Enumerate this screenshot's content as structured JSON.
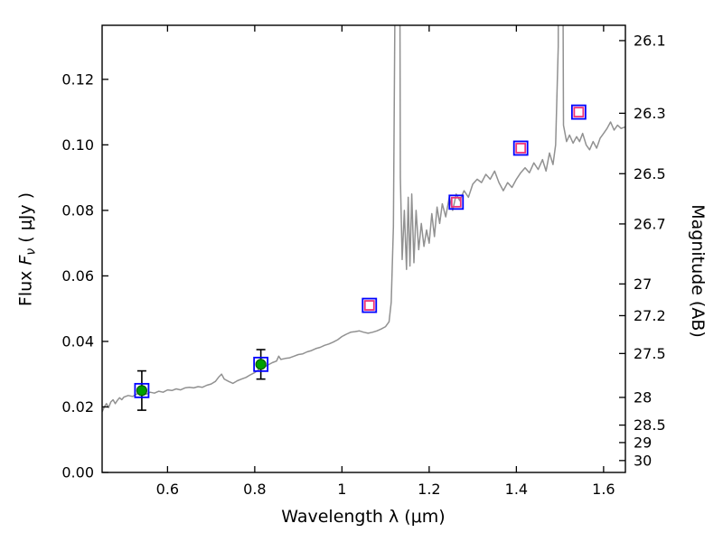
{
  "chart_data": {
    "type": "line+scatter",
    "title": "",
    "xlabel": "Wavelength  λ (μm)",
    "ylabel_left": {
      "text_before": "Flux  ",
      "symbol": "F",
      "subscript": "ν",
      "text_after": "  ( μJy )"
    },
    "ylabel_right": "Magnitude (AB)",
    "axes": {
      "xlim": [
        0.45,
        1.65
      ],
      "ylim": [
        0,
        0.1365
      ],
      "x_tick_values": [
        0.6,
        0.8,
        1.0,
        1.2,
        1.4,
        1.6
      ],
      "x_tick_labels": [
        "0.6",
        "0.8",
        "1",
        "1.2",
        "1.4",
        "1.6"
      ],
      "y_left_tick_values": [
        0,
        0.02,
        0.04,
        0.06,
        0.08,
        0.1,
        0.12
      ],
      "y_left_tick_labels": [
        "0.00",
        "0.02",
        "0.04",
        "0.06",
        "0.08",
        "0.10",
        "0.12"
      ],
      "y_right_tick_values": [
        26.1,
        26.3,
        26.5,
        26.7,
        27,
        27.2,
        27.5,
        28,
        28.5,
        29,
        30
      ],
      "y_right_tick_labels": [
        "26.1",
        "26.3",
        "26.5",
        "26.7",
        "27",
        "27.2",
        "27.5",
        "28",
        "28.5",
        "29",
        "30"
      ],
      "ab_zeropoint_uJy": 23.9,
      "grid": false,
      "frame_color": "#000000"
    },
    "series": [
      {
        "name": "model-spectrum",
        "type": "line",
        "color": "#919191",
        "points": [
          [
            0.45,
            0.0185
          ],
          [
            0.455,
            0.02
          ],
          [
            0.46,
            0.021
          ],
          [
            0.465,
            0.0198
          ],
          [
            0.47,
            0.0215
          ],
          [
            0.475,
            0.0222
          ],
          [
            0.48,
            0.021
          ],
          [
            0.485,
            0.022
          ],
          [
            0.49,
            0.0228
          ],
          [
            0.495,
            0.0222
          ],
          [
            0.5,
            0.023
          ],
          [
            0.51,
            0.0235
          ],
          [
            0.52,
            0.0232
          ],
          [
            0.53,
            0.024
          ],
          [
            0.54,
            0.0243
          ],
          [
            0.55,
            0.0238
          ],
          [
            0.56,
            0.0245
          ],
          [
            0.57,
            0.0242
          ],
          [
            0.58,
            0.0248
          ],
          [
            0.59,
            0.0245
          ],
          [
            0.6,
            0.0252
          ],
          [
            0.61,
            0.025
          ],
          [
            0.62,
            0.0255
          ],
          [
            0.63,
            0.0252
          ],
          [
            0.64,
            0.0258
          ],
          [
            0.65,
            0.026
          ],
          [
            0.66,
            0.0258
          ],
          [
            0.67,
            0.0262
          ],
          [
            0.68,
            0.026
          ],
          [
            0.69,
            0.0266
          ],
          [
            0.7,
            0.027
          ],
          [
            0.71,
            0.0278
          ],
          [
            0.718,
            0.0292
          ],
          [
            0.724,
            0.03
          ],
          [
            0.73,
            0.0285
          ],
          [
            0.74,
            0.0278
          ],
          [
            0.75,
            0.0272
          ],
          [
            0.76,
            0.028
          ],
          [
            0.77,
            0.0285
          ],
          [
            0.78,
            0.029
          ],
          [
            0.79,
            0.0298
          ],
          [
            0.8,
            0.0305
          ],
          [
            0.81,
            0.0315
          ],
          [
            0.815,
            0.033
          ],
          [
            0.82,
            0.032
          ],
          [
            0.83,
            0.0328
          ],
          [
            0.84,
            0.0335
          ],
          [
            0.85,
            0.034
          ],
          [
            0.855,
            0.0355
          ],
          [
            0.86,
            0.0345
          ],
          [
            0.87,
            0.0348
          ],
          [
            0.88,
            0.035
          ],
          [
            0.89,
            0.0355
          ],
          [
            0.9,
            0.036
          ],
          [
            0.91,
            0.0362
          ],
          [
            0.92,
            0.0368
          ],
          [
            0.93,
            0.0372
          ],
          [
            0.94,
            0.0378
          ],
          [
            0.95,
            0.0382
          ],
          [
            0.96,
            0.0388
          ],
          [
            0.97,
            0.0392
          ],
          [
            0.98,
            0.0398
          ],
          [
            0.99,
            0.0405
          ],
          [
            1.0,
            0.0415
          ],
          [
            1.01,
            0.0422
          ],
          [
            1.02,
            0.0428
          ],
          [
            1.03,
            0.043
          ],
          [
            1.04,
            0.0432
          ],
          [
            1.05,
            0.0428
          ],
          [
            1.06,
            0.0425
          ],
          [
            1.07,
            0.0428
          ],
          [
            1.08,
            0.0432
          ],
          [
            1.09,
            0.0438
          ],
          [
            1.1,
            0.0445
          ],
          [
            1.108,
            0.046
          ],
          [
            1.113,
            0.052
          ],
          [
            1.118,
            0.075
          ],
          [
            1.122,
            0.15
          ],
          [
            1.126,
            0.5
          ],
          [
            1.13,
            0.3
          ],
          [
            1.134,
            0.09
          ],
          [
            1.138,
            0.065
          ],
          [
            1.143,
            0.08
          ],
          [
            1.148,
            0.062
          ],
          [
            1.152,
            0.084
          ],
          [
            1.156,
            0.063
          ],
          [
            1.16,
            0.085
          ],
          [
            1.165,
            0.064
          ],
          [
            1.17,
            0.08
          ],
          [
            1.176,
            0.068
          ],
          [
            1.182,
            0.076
          ],
          [
            1.188,
            0.069
          ],
          [
            1.194,
            0.074
          ],
          [
            1.2,
            0.07
          ],
          [
            1.206,
            0.079
          ],
          [
            1.212,
            0.072
          ],
          [
            1.218,
            0.081
          ],
          [
            1.224,
            0.076
          ],
          [
            1.23,
            0.082
          ],
          [
            1.238,
            0.078
          ],
          [
            1.246,
            0.084
          ],
          [
            1.254,
            0.08
          ],
          [
            1.262,
            0.085
          ],
          [
            1.27,
            0.083
          ],
          [
            1.28,
            0.086
          ],
          [
            1.29,
            0.084
          ],
          [
            1.3,
            0.088
          ],
          [
            1.31,
            0.0895
          ],
          [
            1.32,
            0.0885
          ],
          [
            1.33,
            0.091
          ],
          [
            1.34,
            0.0895
          ],
          [
            1.35,
            0.092
          ],
          [
            1.36,
            0.0885
          ],
          [
            1.37,
            0.086
          ],
          [
            1.38,
            0.0885
          ],
          [
            1.39,
            0.087
          ],
          [
            1.4,
            0.0895
          ],
          [
            1.41,
            0.0915
          ],
          [
            1.42,
            0.093
          ],
          [
            1.43,
            0.0915
          ],
          [
            1.44,
            0.0945
          ],
          [
            1.45,
            0.0925
          ],
          [
            1.46,
            0.0955
          ],
          [
            1.468,
            0.092
          ],
          [
            1.476,
            0.0975
          ],
          [
            1.484,
            0.094
          ],
          [
            1.49,
            0.1
          ],
          [
            1.496,
            0.13
          ],
          [
            1.5,
            0.6
          ],
          [
            1.504,
            0.25
          ],
          [
            1.508,
            0.106
          ],
          [
            1.515,
            0.101
          ],
          [
            1.522,
            0.103
          ],
          [
            1.53,
            0.1005
          ],
          [
            1.538,
            0.1025
          ],
          [
            1.545,
            0.101
          ],
          [
            1.552,
            0.1035
          ],
          [
            1.56,
            0.1
          ],
          [
            1.568,
            0.0985
          ],
          [
            1.576,
            0.101
          ],
          [
            1.584,
            0.099
          ],
          [
            1.592,
            0.102
          ],
          [
            1.6,
            0.1035
          ],
          [
            1.608,
            0.105
          ],
          [
            1.616,
            0.107
          ],
          [
            1.624,
            0.1045
          ],
          [
            1.632,
            0.106
          ],
          [
            1.64,
            0.105
          ],
          [
            1.65,
            0.1055
          ]
        ]
      },
      {
        "name": "observed-photometry",
        "type": "scatter",
        "marker": "square+filled-circle",
        "square_color": "#0000ff",
        "circle_fill": "#00a000",
        "circle_edge": "#005c00",
        "errorbar_color": "#000000",
        "points": [
          [
            0.541,
            0.025,
            0.006
          ],
          [
            0.814,
            0.033,
            0.0045
          ]
        ]
      },
      {
        "name": "model-photometry",
        "type": "scatter",
        "marker": "double-open-square",
        "outer_color": "#0000ff",
        "inner_color": "#ee3377",
        "points": [
          [
            1.063,
            0.051
          ],
          [
            1.262,
            0.0825
          ],
          [
            1.41,
            0.099
          ],
          [
            1.543,
            0.11
          ]
        ]
      }
    ]
  }
}
